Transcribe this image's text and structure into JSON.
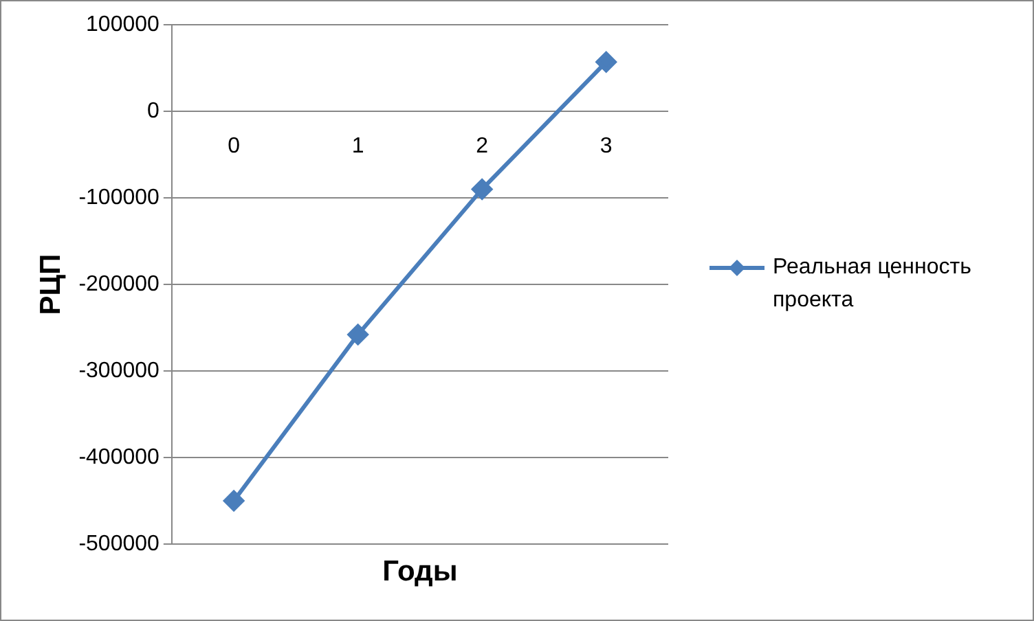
{
  "chart_data": {
    "type": "line",
    "xlabel": "Годы",
    "ylabel": "РЦП",
    "categories": [
      "0",
      "1",
      "2",
      "3"
    ],
    "series": [
      {
        "name": "Реальная ценность проекта",
        "color": "#4a7ebb",
        "values": [
          -450000,
          -258000,
          -90000,
          57000
        ]
      }
    ],
    "ylim": [
      -500000,
      100000
    ],
    "yticks": [
      -500000,
      -400000,
      -300000,
      -200000,
      -100000,
      0,
      100000
    ],
    "grid": "y",
    "legend": "right",
    "marker": "diamond",
    "line_style": "solid"
  }
}
